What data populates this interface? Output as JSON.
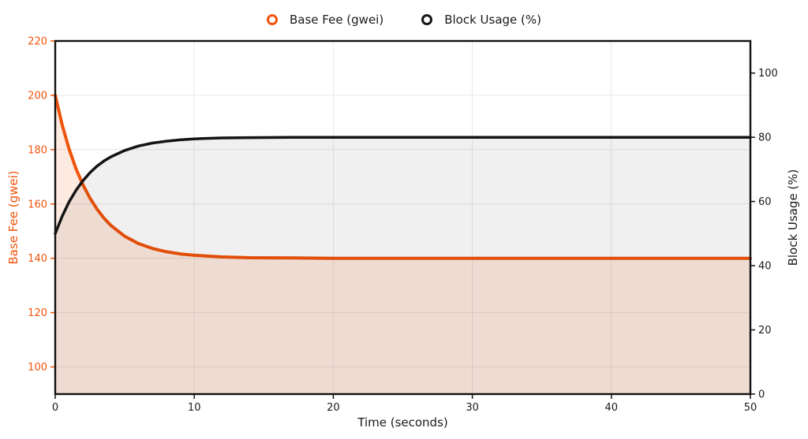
{
  "legend": {
    "items": [
      {
        "label": "Base Fee (gwei)",
        "color": "#f0530a"
      },
      {
        "label": "Block Usage (%)",
        "color": "#141414"
      }
    ]
  },
  "chart_data": {
    "type": "line",
    "title": "",
    "grid": true,
    "legend_position": "top-center",
    "x_axis": {
      "label": "Time (seconds)",
      "min": 0,
      "max": 50,
      "ticks": [
        0,
        10,
        20,
        30,
        40,
        50
      ]
    },
    "left_axis": {
      "label": "Base Fee (gwei)",
      "color": "#f0530a",
      "min": 90,
      "max": 220,
      "ticks": [
        100,
        120,
        140,
        160,
        180,
        200,
        220
      ]
    },
    "right_axis": {
      "label": "Block Usage (%)",
      "color": "#1a1a1a",
      "min": 0,
      "max": 110,
      "ticks": [
        0,
        20,
        40,
        60,
        80,
        100
      ]
    },
    "x": [
      0,
      0.5,
      1,
      1.5,
      2,
      2.5,
      3,
      3.5,
      4,
      5,
      6,
      7,
      8,
      9,
      10,
      12,
      14,
      17,
      20,
      25,
      30,
      35,
      40,
      45,
      50
    ],
    "series": [
      {
        "name": "Base Fee (gwei)",
        "axis": "left",
        "color": "#f0530a",
        "fill_color": "#f0530a",
        "fill_opacity": 0.12,
        "line_width": 4,
        "values": [
          200.0,
          189.1,
          180.2,
          172.9,
          167.0,
          162.1,
          158.1,
          154.8,
          152.1,
          148.1,
          145.4,
          143.6,
          142.4,
          141.6,
          141.1,
          140.5,
          140.2,
          140.1,
          140.0,
          140.0,
          140.0,
          140.0,
          140.0,
          140.0,
          140.0
        ]
      },
      {
        "name": "Block Usage (%)",
        "axis": "right",
        "color": "#141414",
        "fill_color": "#000000",
        "fill_opacity": 0.06,
        "line_width": 3.5,
        "values": [
          50.0,
          55.4,
          59.9,
          63.5,
          66.5,
          69.0,
          71.0,
          72.6,
          73.9,
          75.9,
          77.3,
          78.2,
          78.8,
          79.2,
          79.5,
          79.8,
          79.9,
          80.0,
          80.0,
          80.0,
          80.0,
          80.0,
          80.0,
          80.0,
          80.0
        ]
      }
    ]
  }
}
